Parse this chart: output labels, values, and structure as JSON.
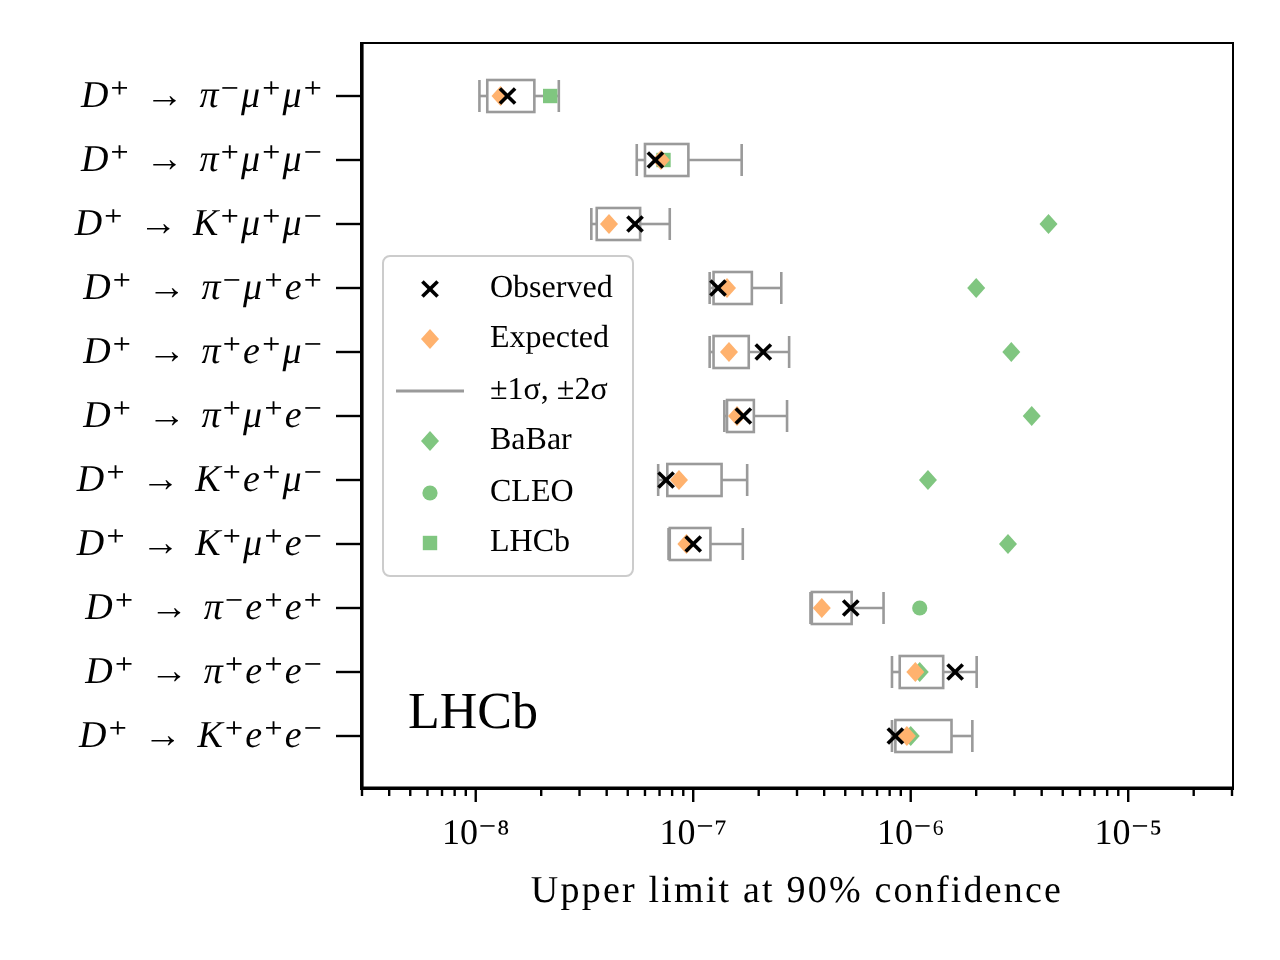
{
  "chart_data": {
    "type": "box",
    "orientation": "horizontal",
    "categories": [
      "D⁺ → π⁻μ⁺μ⁺",
      "D⁺ → π⁺μ⁺μ⁻",
      "D⁺ → K⁺μ⁺μ⁻",
      "D⁺ → π⁻μ⁺e⁺",
      "D⁺ → π⁺e⁺μ⁻",
      "D⁺ → π⁺μ⁺e⁻",
      "D⁺ → K⁺e⁺μ⁻",
      "D⁺ → K⁺μ⁺e⁻",
      "D⁺ → π⁻e⁺e⁺",
      "D⁺ → π⁺e⁺e⁻",
      "D⁺ → K⁺e⁺e⁻"
    ],
    "xlabel": "Upper limit at 90% confidence",
    "log": "x",
    "xlim": [
      3e-09,
      3e-05
    ],
    "xticks": [
      {
        "value": 3e-09,
        "label": null
      },
      {
        "value": 4e-09,
        "label": null
      },
      {
        "value": 5e-09,
        "label": null
      },
      {
        "value": 6e-09,
        "label": null
      },
      {
        "value": 7e-09,
        "label": null
      },
      {
        "value": 8e-09,
        "label": null
      },
      {
        "value": 9e-09,
        "label": null
      },
      {
        "value": 1e-08,
        "label": "10⁻⁸"
      },
      {
        "value": 2e-08,
        "label": null
      },
      {
        "value": 3e-08,
        "label": null
      },
      {
        "value": 4e-08,
        "label": null
      },
      {
        "value": 5e-08,
        "label": null
      },
      {
        "value": 6e-08,
        "label": null
      },
      {
        "value": 7e-08,
        "label": null
      },
      {
        "value": 8e-08,
        "label": null
      },
      {
        "value": 9e-08,
        "label": null
      },
      {
        "value": 1e-07,
        "label": "10⁻⁷"
      },
      {
        "value": 2e-07,
        "label": null
      },
      {
        "value": 3e-07,
        "label": null
      },
      {
        "value": 4e-07,
        "label": null
      },
      {
        "value": 5e-07,
        "label": null
      },
      {
        "value": 6e-07,
        "label": null
      },
      {
        "value": 7e-07,
        "label": null
      },
      {
        "value": 8e-07,
        "label": null
      },
      {
        "value": 9e-07,
        "label": null
      },
      {
        "value": 1e-06,
        "label": "10⁻⁶"
      },
      {
        "value": 2e-06,
        "label": null
      },
      {
        "value": 3e-06,
        "label": null
      },
      {
        "value": 4e-06,
        "label": null
      },
      {
        "value": 5e-06,
        "label": null
      },
      {
        "value": 6e-06,
        "label": null
      },
      {
        "value": 7e-06,
        "label": null
      },
      {
        "value": 8e-06,
        "label": null
      },
      {
        "value": 9e-06,
        "label": null
      },
      {
        "value": 1e-05,
        "label": "10⁻⁵"
      },
      {
        "value": 2e-05,
        "label": null
      },
      {
        "value": 3e-05,
        "label": null
      }
    ],
    "legend": "left",
    "annotations": [
      "LHCb"
    ],
    "series": [
      {
        "name": "Observed",
        "type": "scatter",
        "marker": "cross",
        "color": "#000000",
        "values": [
          1.4e-08,
          6.7e-08,
          5.4e-08,
          1.3e-07,
          2.1e-07,
          1.7e-07,
          7.5e-08,
          1e-07,
          5.3e-07,
          1.6e-06,
          8.5e-07
        ]
      },
      {
        "name": "Expected",
        "type": "scatter",
        "marker": "diamond",
        "color": "#ffb26e",
        "values": [
          1.3e-08,
          7.1e-08,
          4.1e-08,
          1.43e-07,
          1.46e-07,
          1.59e-07,
          8.6e-08,
          9.3e-08,
          3.9e-07,
          1.05e-06,
          9.6e-07
        ]
      },
      {
        "name": "±1σ, ±2σ",
        "color": "#9a9a9a",
        "boxes": [
          {
            "low": 1.04e-08,
            "q1": 1.13e-08,
            "q3": 1.86e-08,
            "high": 2.41e-08
          },
          {
            "low": 5.5e-08,
            "q1": 6e-08,
            "q3": 9.5e-08,
            "high": 1.67e-07
          },
          {
            "low": 3.4e-08,
            "q1": 3.6e-08,
            "q3": 5.7e-08,
            "high": 7.8e-08
          },
          {
            "low": 1.19e-07,
            "q1": 1.24e-07,
            "q3": 1.86e-07,
            "high": 2.54e-07
          },
          {
            "low": 1.19e-07,
            "q1": 1.24e-07,
            "q3": 1.8e-07,
            "high": 2.76e-07
          },
          {
            "low": 1.39e-07,
            "q1": 1.43e-07,
            "q3": 1.9e-07,
            "high": 2.7e-07
          },
          {
            "low": 6.9e-08,
            "q1": 7.6e-08,
            "q3": 1.35e-07,
            "high": 1.77e-07
          },
          {
            "low": 7.7e-08,
            "q1": 7.8e-08,
            "q3": 1.2e-07,
            "high": 1.69e-07
          },
          {
            "low": 3.46e-07,
            "q1": 3.51e-07,
            "q3": 5.35e-07,
            "high": 7.5e-07
          },
          {
            "low": 8.2e-07,
            "q1": 8.9e-07,
            "q3": 1.41e-06,
            "high": 2.01e-06
          },
          {
            "low": 8.2e-07,
            "q1": 8.5e-07,
            "q3": 1.54e-06,
            "high": 1.92e-06
          }
        ]
      },
      {
        "name": "BaBar",
        "type": "scatter",
        "marker": "diamond",
        "color": "#80c680",
        "values": [
          null,
          null,
          4.3e-06,
          2e-06,
          2.9e-06,
          3.6e-06,
          1.2e-06,
          2.8e-06,
          null,
          1.1e-06,
          1e-06
        ]
      },
      {
        "name": "CLEO",
        "type": "scatter",
        "marker": "circle",
        "color": "#80c680",
        "values": [
          null,
          null,
          null,
          null,
          null,
          null,
          null,
          null,
          1.1e-06,
          null,
          null
        ]
      },
      {
        "name": "LHCb",
        "type": "scatter",
        "marker": "square",
        "color": "#80c680",
        "values": [
          2.2e-08,
          7.3e-08,
          null,
          null,
          null,
          null,
          null,
          null,
          null,
          null,
          null
        ]
      }
    ]
  }
}
